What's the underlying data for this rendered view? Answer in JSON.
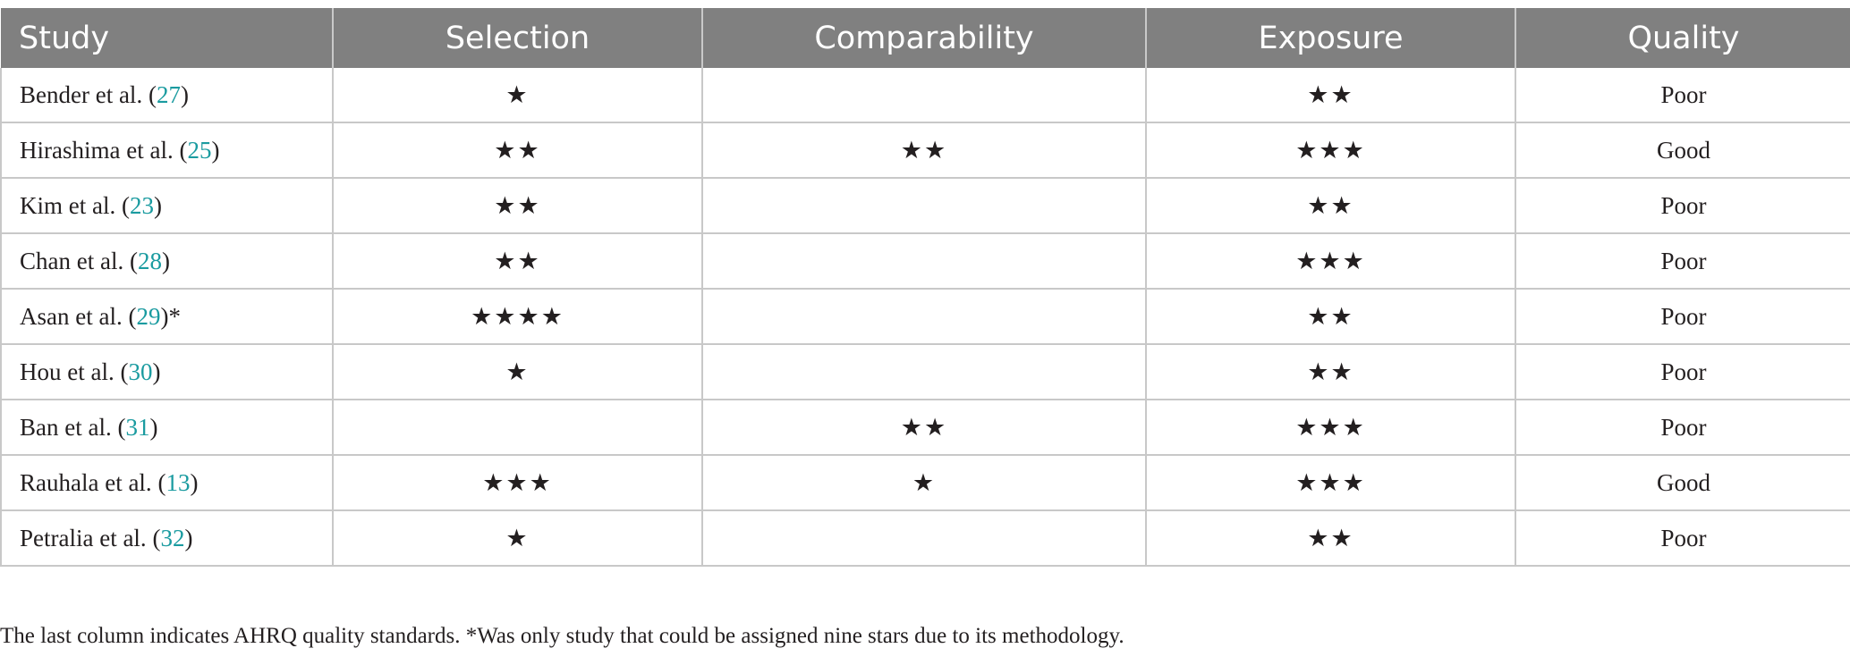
{
  "table": {
    "headers": [
      "Study",
      "Selection",
      "Comparability",
      "Exposure",
      "Quality"
    ],
    "rows": [
      {
        "author": "Bender et al.",
        "ref": "27",
        "suffix": "",
        "selection": "★",
        "comparability": "",
        "exposure": "★★",
        "quality": "Poor"
      },
      {
        "author": "Hirashima et al.",
        "ref": "25",
        "suffix": "",
        "selection": "★★",
        "comparability": "★★",
        "exposure": "★★★",
        "quality": "Good"
      },
      {
        "author": "Kim et al.",
        "ref": "23",
        "suffix": "",
        "selection": "★★",
        "comparability": "",
        "exposure": "★★",
        "quality": "Poor"
      },
      {
        "author": "Chan et al.",
        "ref": "28",
        "suffix": "",
        "selection": "★★",
        "comparability": "",
        "exposure": "★★★",
        "quality": "Poor"
      },
      {
        "author": "Asan et al.",
        "ref": "29",
        "suffix": "*",
        "selection": "★★★★",
        "comparability": "",
        "exposure": "★★",
        "quality": "Poor"
      },
      {
        "author": "Hou et al.",
        "ref": "30",
        "suffix": "",
        "selection": "★",
        "comparability": "",
        "exposure": "★★",
        "quality": "Poor"
      },
      {
        "author": "Ban et al.",
        "ref": "31",
        "suffix": "",
        "selection": "",
        "comparability": "★★",
        "exposure": "★★★",
        "quality": "Poor"
      },
      {
        "author": "Rauhala et al.",
        "ref": "13",
        "suffix": "",
        "selection": "★★★",
        "comparability": "★",
        "exposure": "★★★",
        "quality": "Good"
      },
      {
        "author": "Petralia et al.",
        "ref": "32",
        "suffix": "",
        "selection": "★",
        "comparability": "",
        "exposure": "★★",
        "quality": "Poor"
      }
    ]
  },
  "footnote": "The last column indicates AHRQ quality standards. *Was only study that could be assigned nine stars due to its methodology.",
  "colors": {
    "header_bg": "#808080",
    "header_text": "#ffffff",
    "reference_link": "#1a9ba0",
    "grid_line": "#c8c8c8"
  }
}
